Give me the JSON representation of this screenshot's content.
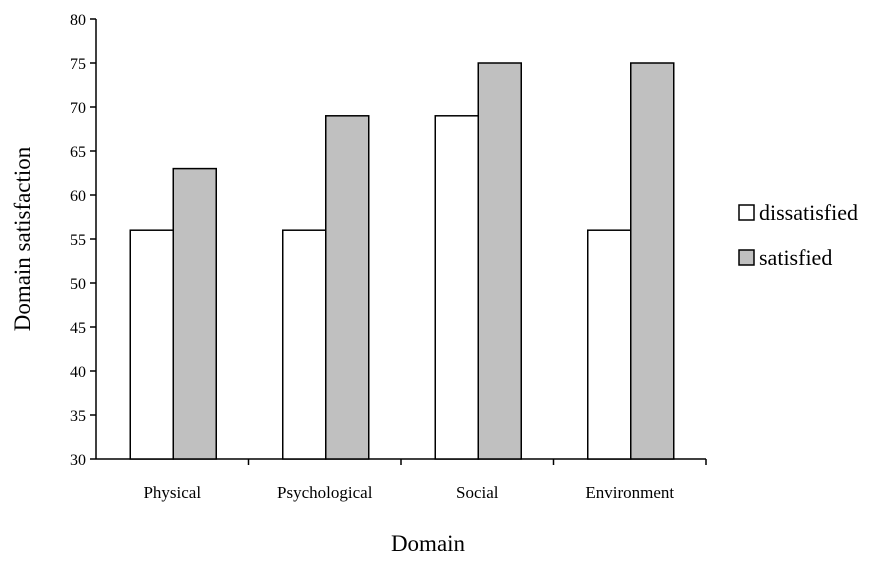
{
  "chart_data": {
    "type": "bar",
    "categories": [
      "Physical",
      "Psychological",
      "Social",
      "Environment"
    ],
    "series": [
      {
        "name": "dissatisfied",
        "values": [
          56,
          56,
          69,
          56
        ],
        "color": "#ffffff"
      },
      {
        "name": "satisfied",
        "values": [
          63,
          69,
          75,
          75
        ],
        "color": "#c0c0c0"
      }
    ],
    "xlabel": "Domain",
    "ylabel": "Domain satisfaction",
    "ylim": [
      30,
      80
    ],
    "yticks": [
      30,
      35,
      40,
      45,
      50,
      55,
      60,
      65,
      70,
      75,
      80
    ],
    "grid": false,
    "legend_position": "right"
  }
}
